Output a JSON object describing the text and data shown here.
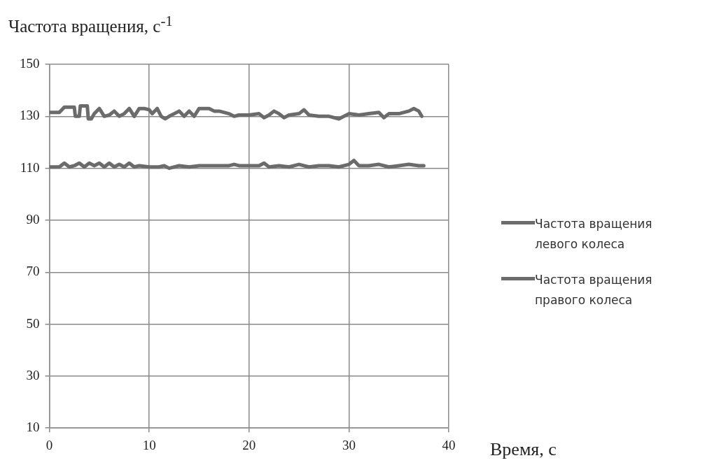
{
  "chart_data": {
    "type": "line",
    "ylabel": "Частота вращения, с$^{-1}$",
    "xlabel": "Время,  с",
    "xlim": [
      0,
      40
    ],
    "xticks": [
      0,
      10,
      20,
      30,
      40
    ],
    "ylim": [
      10,
      150
    ],
    "yticks": [
      10,
      30,
      50,
      70,
      90,
      110,
      130,
      150
    ],
    "grid": true,
    "legend": "right",
    "marker": "none",
    "line_style": "solid",
    "series": [
      {
        "name": "Частота вращения левого колеса",
        "color": "#6b6b6b",
        "x": [
          0,
          1,
          1.5,
          2.5,
          2.6,
          3,
          3.1,
          3.8,
          3.9,
          4.2,
          4.5,
          5,
          5.5,
          6,
          6.5,
          7,
          7.5,
          8,
          8.5,
          9,
          9.5,
          10,
          10.3,
          10.8,
          11.2,
          11.6,
          12,
          12.5,
          13,
          13.5,
          14,
          14.5,
          15,
          16,
          16.5,
          17,
          18,
          18.5,
          19,
          20,
          21,
          21.5,
          22,
          22.5,
          23,
          23.5,
          24,
          25,
          25.5,
          26,
          27,
          28,
          29,
          30,
          31,
          32,
          33,
          33.5,
          34,
          35,
          36,
          36.5,
          37,
          37.3
        ],
        "values": [
          131.5,
          131.5,
          133.5,
          133.5,
          130,
          130,
          134,
          134,
          129,
          129,
          131,
          133,
          130,
          130.5,
          132,
          130,
          131,
          133,
          130,
          133,
          133,
          132.5,
          131,
          133,
          130,
          129,
          130,
          131,
          132,
          130,
          132,
          130,
          133,
          133,
          132,
          132,
          131,
          130,
          130.5,
          130.5,
          131,
          129.5,
          130.5,
          132,
          131,
          129.5,
          130.5,
          131,
          132.5,
          130.5,
          130,
          130,
          129,
          131,
          130.5,
          131,
          131.5,
          129.5,
          131,
          131,
          132,
          133,
          132,
          130
        ]
      },
      {
        "name": "Частота вращения правого колеса",
        "color": "#6b6b6b",
        "x": [
          0,
          1,
          1.5,
          2,
          2.5,
          3,
          3.5,
          4,
          4.5,
          5,
          5.5,
          6,
          6.5,
          7,
          7.5,
          8,
          8.5,
          9,
          10,
          11,
          11.5,
          12,
          13,
          14,
          15,
          16,
          18,
          18.5,
          19,
          21,
          21.5,
          22,
          23,
          24,
          25,
          26,
          27,
          28,
          29,
          30,
          30.5,
          31,
          32,
          33,
          34,
          35,
          36,
          37,
          37.5
        ],
        "values": [
          110.5,
          110.5,
          112,
          110.5,
          111,
          112,
          110.5,
          112,
          111,
          112,
          110.5,
          112,
          110.5,
          111.5,
          110.5,
          112,
          110.5,
          111,
          110.5,
          110.5,
          111,
          110,
          111,
          110.5,
          111,
          111,
          111,
          111.5,
          111,
          111,
          112,
          110.5,
          111,
          110.5,
          111.5,
          110.5,
          111,
          111,
          110.5,
          111.5,
          113,
          111,
          111,
          111.5,
          110.5,
          111,
          111.5,
          111,
          111
        ]
      }
    ]
  }
}
